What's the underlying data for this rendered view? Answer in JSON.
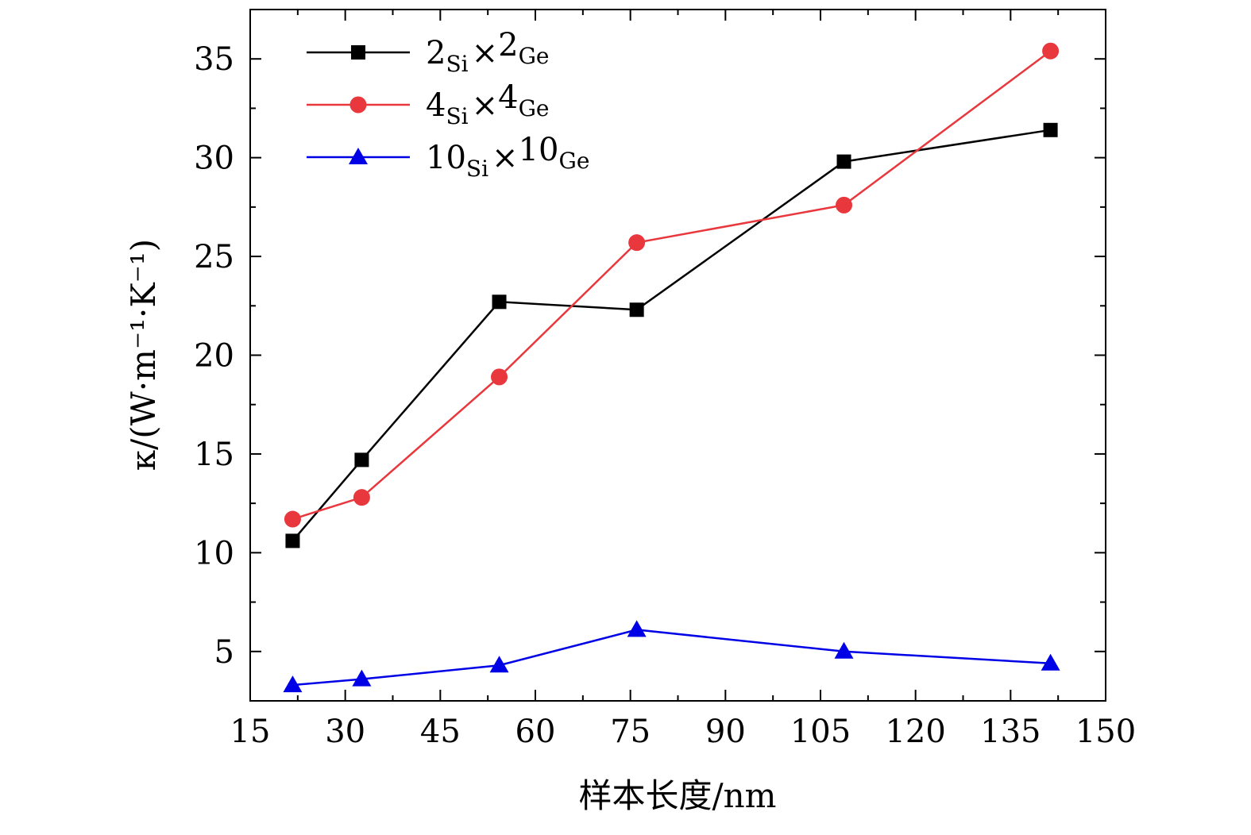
{
  "chart_data": {
    "type": "line",
    "title": "",
    "xlabel": "样本长度/nm",
    "ylabel": "κ/(W·m⁻¹·K⁻¹)",
    "xlim": [
      15,
      150
    ],
    "ylim": [
      2.5,
      37.5
    ],
    "xticks": [
      "15",
      "30",
      "45",
      "60",
      "75",
      "90",
      "105",
      "120",
      "135",
      "150"
    ],
    "yticks": [
      "5",
      "10",
      "15",
      "20",
      "25",
      "30",
      "35"
    ],
    "x": [
      21.7,
      32.6,
      54.3,
      76.0,
      108.7,
      141.3
    ],
    "series": [
      {
        "name": "2Si×2Ge",
        "name_parts": {
          "n1": "2",
          "s1": "Si",
          "op": "×",
          "n2": "2",
          "s2": "Ge"
        },
        "color": "#000000",
        "marker": "square",
        "values": [
          10.6,
          14.7,
          22.7,
          22.3,
          29.8,
          31.4
        ]
      },
      {
        "name": "4Si×4Ge",
        "name_parts": {
          "n1": "4",
          "s1": "Si",
          "op": "×",
          "n2": "4",
          "s2": "Ge"
        },
        "color": "#e8383d",
        "marker": "circle",
        "values": [
          11.7,
          12.8,
          18.9,
          25.7,
          27.6,
          35.4
        ]
      },
      {
        "name": "10Si×10Ge",
        "name_parts": {
          "n1": "10",
          "s1": "Si",
          "op": "×",
          "n2": "10",
          "s2": "Ge"
        },
        "color": "#0000e6",
        "marker": "triangle",
        "values": [
          3.3,
          3.6,
          4.3,
          6.1,
          5.0,
          4.4
        ]
      }
    ],
    "legend_position": "top-left",
    "grid": false
  }
}
